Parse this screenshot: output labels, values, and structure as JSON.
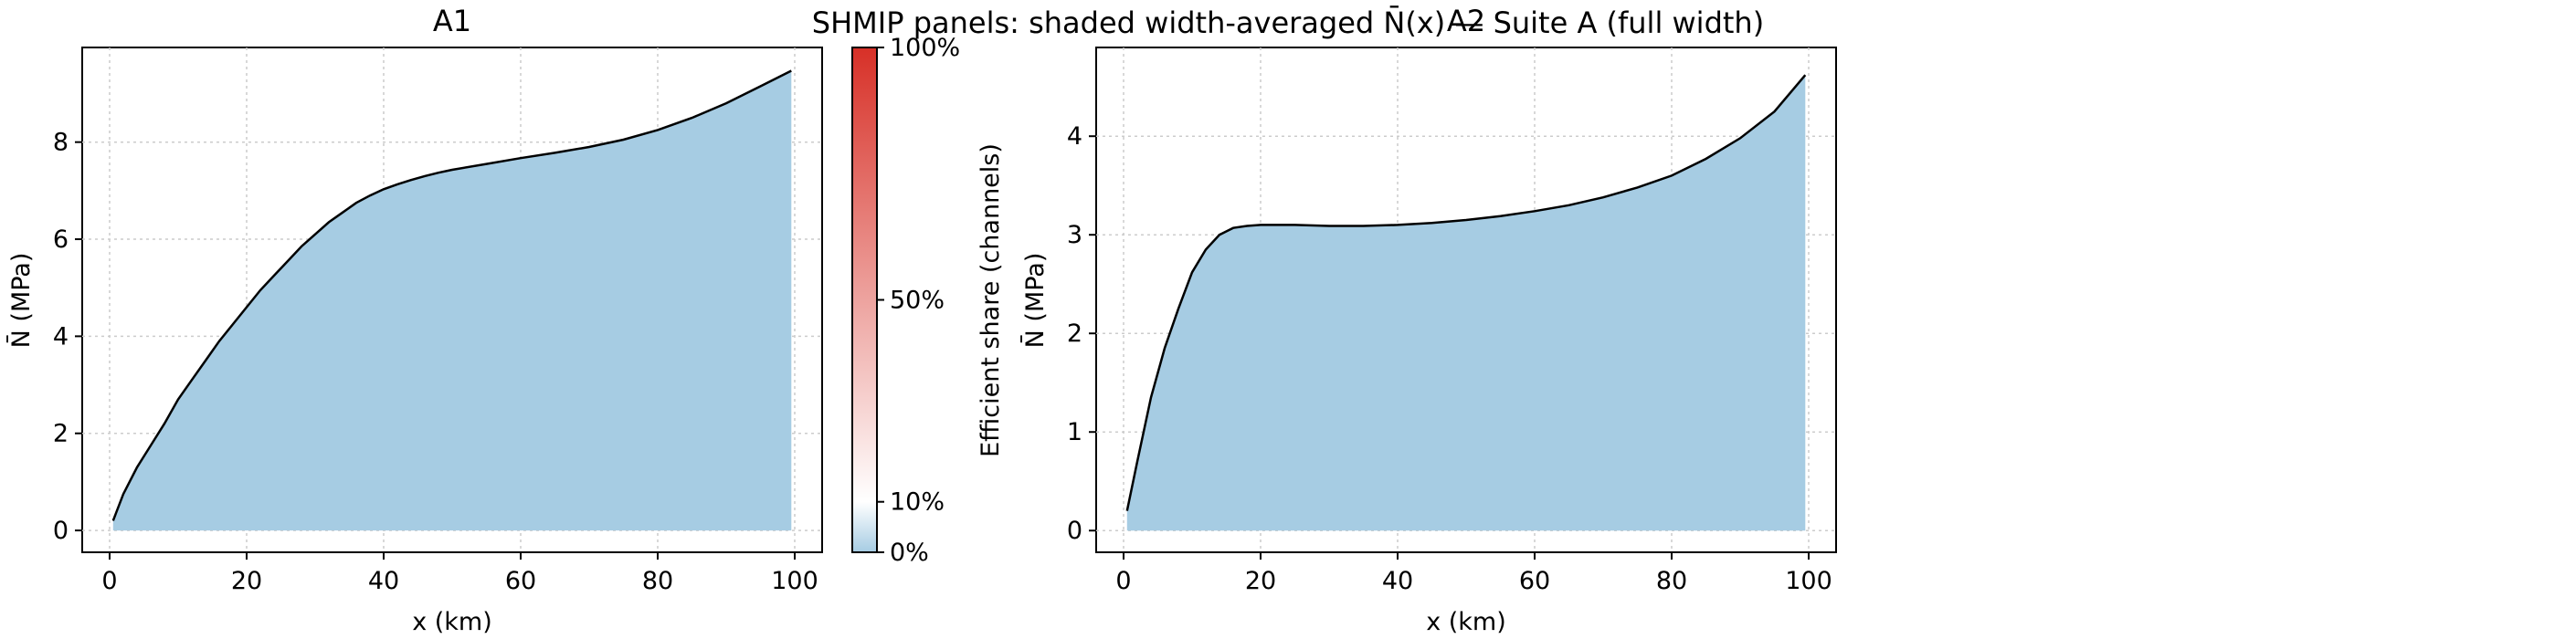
{
  "figure": {
    "suptitle": "SHMIP panels: shaded width-averaged N̄(x) — Suite A (full width)"
  },
  "colorbar": {
    "label": "Efficient share (channels)",
    "ticks": [
      {
        "value": 0,
        "label": "0%"
      },
      {
        "value": 0.1,
        "label": "10%"
      },
      {
        "value": 0.5,
        "label": "50%"
      },
      {
        "value": 1.0,
        "label": "100%"
      }
    ],
    "colors": {
      "low": "#a6cce3",
      "mid": "#ffffff",
      "high": "#d73027"
    }
  },
  "style": {
    "fill_color": "#a6cce3",
    "line_color": "#000000",
    "grid_color": "#cccccc"
  },
  "chart_data": [
    {
      "type": "area",
      "title": "A1",
      "xlabel": "x (km)",
      "ylabel": "N̄ (MPa)",
      "xlim": [
        -4,
        104
      ],
      "ylim": [
        -0.45,
        9.95
      ],
      "xticks": [
        0,
        20,
        40,
        60,
        80,
        100
      ],
      "yticks": [
        0,
        2,
        4,
        6,
        8
      ],
      "grid": true,
      "x": [
        0.5,
        2,
        4,
        6,
        8,
        10,
        12,
        14,
        16,
        18,
        20,
        22,
        24,
        26,
        28,
        30,
        32,
        34,
        36,
        38,
        40,
        42,
        44,
        46,
        48,
        50,
        55,
        60,
        65,
        70,
        75,
        80,
        85,
        90,
        95,
        99.5
      ],
      "y": [
        0.2,
        0.75,
        1.3,
        1.75,
        2.2,
        2.7,
        3.1,
        3.5,
        3.9,
        4.25,
        4.6,
        4.95,
        5.25,
        5.55,
        5.85,
        6.1,
        6.35,
        6.55,
        6.75,
        6.9,
        7.03,
        7.13,
        7.22,
        7.3,
        7.37,
        7.43,
        7.55,
        7.67,
        7.78,
        7.9,
        8.05,
        8.25,
        8.5,
        8.8,
        9.15,
        9.47
      ]
    },
    {
      "type": "area",
      "title": "A2",
      "xlabel": "x (km)",
      "ylabel": "N̄ (MPa)",
      "xlim": [
        -4,
        104
      ],
      "ylim": [
        -0.22,
        4.9
      ],
      "xticks": [
        0,
        20,
        40,
        60,
        80,
        100
      ],
      "yticks": [
        0,
        1,
        2,
        3,
        4
      ],
      "grid": true,
      "x": [
        0.5,
        2,
        4,
        6,
        8,
        10,
        12,
        14,
        16,
        18,
        20,
        25,
        30,
        35,
        40,
        45,
        50,
        55,
        60,
        65,
        70,
        75,
        80,
        85,
        90,
        95,
        99.5
      ],
      "y": [
        0.2,
        0.7,
        1.35,
        1.85,
        2.25,
        2.62,
        2.85,
        3.0,
        3.07,
        3.09,
        3.1,
        3.1,
        3.09,
        3.09,
        3.1,
        3.12,
        3.15,
        3.19,
        3.24,
        3.3,
        3.38,
        3.48,
        3.6,
        3.77,
        3.98,
        4.25,
        4.62
      ]
    }
  ]
}
